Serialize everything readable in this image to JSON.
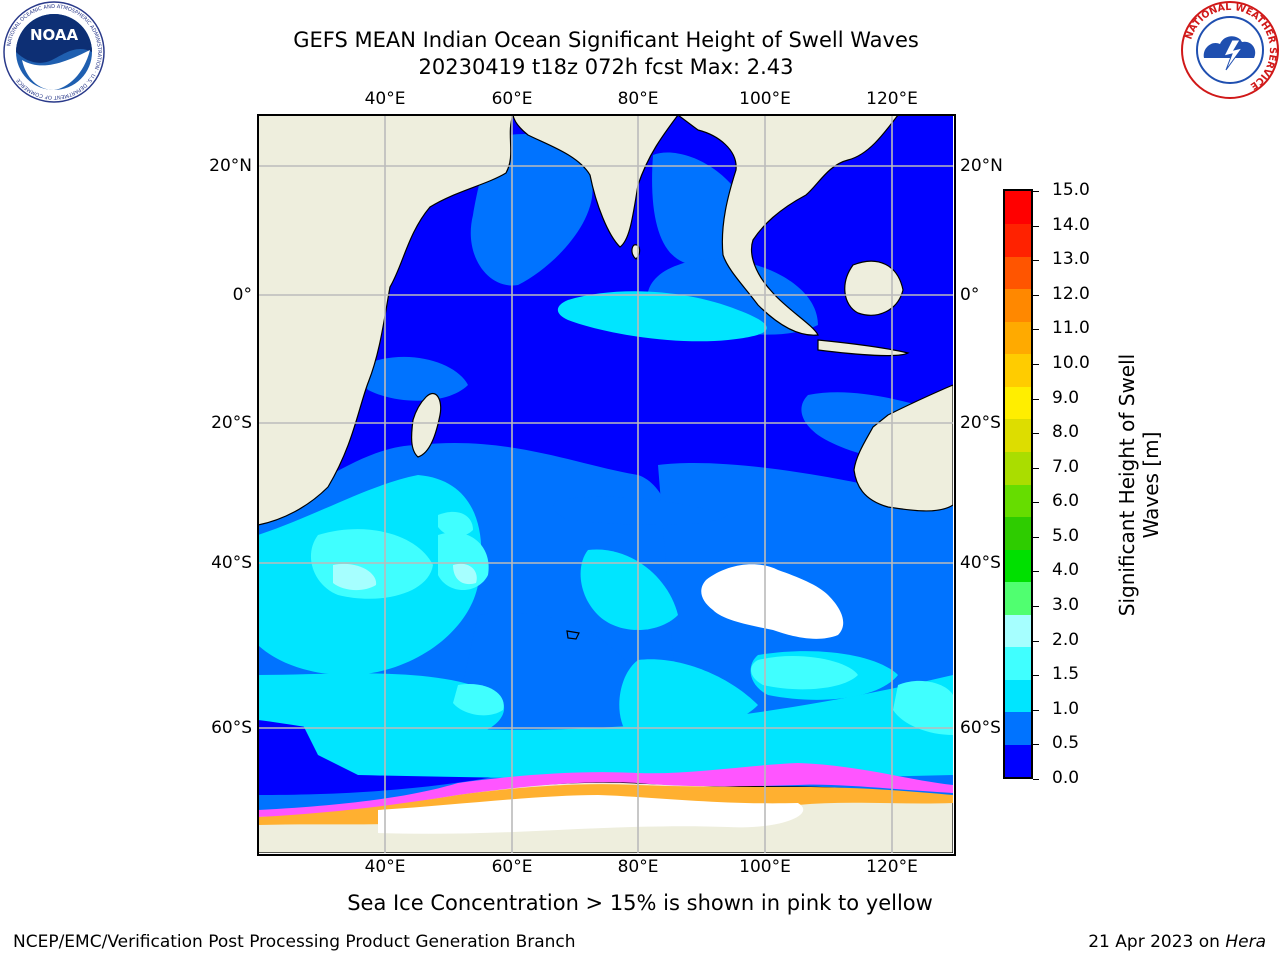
{
  "header": {
    "title": "GEFS MEAN Indian Ocean Significant Height of Swell Waves",
    "subtitle": "20230419 t18z 072h fcst    Max: 2.43"
  },
  "logos": {
    "left_name": "NOAA",
    "left_ring_text": "NATIONAL OCEANIC AND ATMOSPHERIC ADMINISTRATION · U.S. DEPARTMENT OF COMMERCE",
    "right_name": "NATIONAL WEATHER SERVICE"
  },
  "map": {
    "lon_labels": [
      "40°E",
      "60°E",
      "80°E",
      "100°E",
      "120°E"
    ],
    "lat_labels": [
      "20°N",
      "0°",
      "20°S",
      "40°S",
      "60°S"
    ],
    "colors": {
      "land": "#eeeedd",
      "band_0": "#0000ff",
      "band_05": "#0073ff",
      "band_1": "#00e5ff",
      "band_15": "#40ffff",
      "band_2": "#a6ffff",
      "ice_white": "#ffffff",
      "ice_pink": "#ff55ff",
      "ice_yellow": "#ffb030",
      "grid": "#bbbbbb"
    }
  },
  "colorbar": {
    "label_line1": "Significant Height of Swell",
    "label_line2": "Waves [m]",
    "ticks": [
      "0.0",
      "0.5",
      "1.0",
      "1.5",
      "2.0",
      "3.0",
      "4.0",
      "5.0",
      "6.0",
      "7.0",
      "8.0",
      "9.0",
      "10.0",
      "11.0",
      "12.0",
      "13.0",
      "14.0",
      "15.0"
    ],
    "colors": [
      "#0000ff",
      "#0073ff",
      "#00e5ff",
      "#40ffff",
      "#a6ffff",
      "#50ff70",
      "#00e000",
      "#2ecc00",
      "#66dd00",
      "#aadd00",
      "#dddd00",
      "#ffee00",
      "#ffcc00",
      "#ffaa00",
      "#ff8800",
      "#ff5500",
      "#ff2200",
      "#ff0000"
    ]
  },
  "footer": {
    "note": "Sea Ice Concentration > 15% is shown in pink to yellow",
    "credit": "NCEP/EMC/Verification Post Processing Product Generation Branch",
    "date_prefix": "21 Apr 2023 on ",
    "date_host": "Hera"
  }
}
